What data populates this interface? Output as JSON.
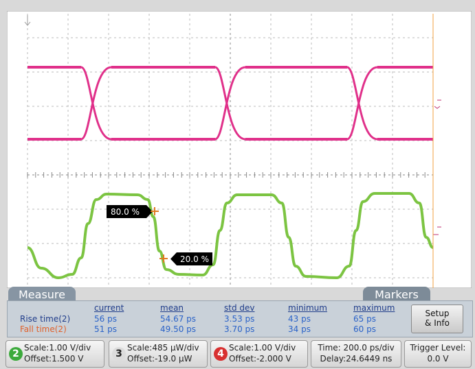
{
  "screen": {
    "markers": [
      {
        "label": "80.0 %"
      },
      {
        "label": "20.0 %"
      }
    ]
  },
  "tabs": [
    "Measure",
    "Markers"
  ],
  "measure": {
    "headers": [
      "current",
      "mean",
      "std dev",
      "minimum",
      "maximum"
    ],
    "rows": [
      {
        "label": "Rise time(2)",
        "values": [
          "56 ps",
          "54.67 ps",
          "3.53 ps",
          "43 ps",
          "65 ps"
        ]
      },
      {
        "label": "Fall time(2)",
        "values": [
          "51 ps",
          "49.50 ps",
          "3.70 ps",
          "34 ps",
          "60 ps"
        ]
      }
    ]
  },
  "button": [
    "Setup",
    "& Info"
  ],
  "status": [
    {
      "channel": "2",
      "scale": "Scale:1.00 V/div",
      "offset": "Offset:1.500 V"
    },
    {
      "channel": "3",
      "scale": "Scale:485 µW/div",
      "offset": "Offset:-19.0 µW"
    },
    {
      "channel": "4",
      "scale": "Scale:1.00 V/div",
      "offset": "Offset:-2.000 V"
    }
  ],
  "time": {
    "scale": "Time: 200.0 ps/div",
    "delay": "Delay:24.6449 ns"
  },
  "trigger": {
    "label": "Trigger Level:",
    "value": "0.0 V"
  }
}
